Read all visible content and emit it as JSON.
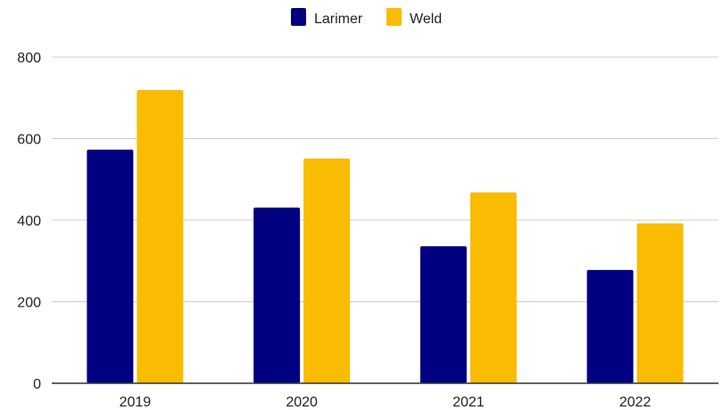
{
  "chart_data": {
    "type": "bar",
    "title": "",
    "xlabel": "",
    "ylabel": "",
    "categories": [
      "2019",
      "2020",
      "2021",
      "2022"
    ],
    "series": [
      {
        "name": "Larimer",
        "color": "#000080",
        "values": [
          573,
          431,
          336,
          278
        ]
      },
      {
        "name": "Weld",
        "color": "#F9BC02",
        "values": [
          719,
          551,
          468,
          392
        ]
      }
    ],
    "ylim": [
      0,
      800
    ],
    "yticks": [
      "0",
      "200",
      "400",
      "600",
      "800"
    ],
    "grid": true,
    "legend": "top-center"
  }
}
